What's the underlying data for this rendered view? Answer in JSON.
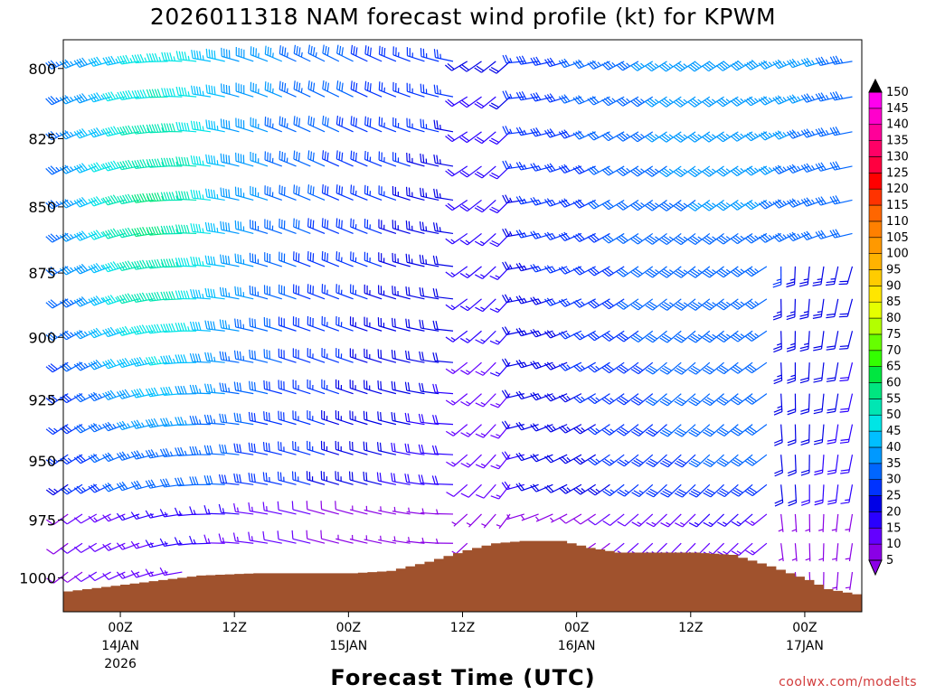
{
  "chart_data": {
    "type": "wind-barb-time-height",
    "title": "2026011318 NAM forecast wind profile (kt) for KPWM",
    "xlabel": "Forecast Time (UTC)",
    "ylabel": "",
    "credit": "coolwx.com/modelts",
    "forecast_hours": [
      0,
      84
    ],
    "pressure_range_hPa": [
      1015,
      790
    ],
    "y_ticks": [
      800,
      825,
      850,
      875,
      900,
      925,
      950,
      975,
      1000
    ],
    "x_ticks": [
      {
        "hour": 6,
        "label": "00Z",
        "date": "14JAN",
        "year": "2026"
      },
      {
        "hour": 18,
        "label": "12Z",
        "date": "",
        "year": ""
      },
      {
        "hour": 30,
        "label": "00Z",
        "date": "15JAN",
        "year": ""
      },
      {
        "hour": 42,
        "label": "12Z",
        "date": "",
        "year": ""
      },
      {
        "hour": 54,
        "label": "00Z",
        "date": "16JAN",
        "year": ""
      },
      {
        "hour": 66,
        "label": "12Z",
        "date": "",
        "year": ""
      },
      {
        "hour": 78,
        "label": "00Z",
        "date": "17JAN",
        "year": ""
      }
    ],
    "surface_pressure_hPa": {
      "hours": [
        0,
        6,
        10,
        14,
        20,
        30,
        34,
        38,
        42,
        45,
        48,
        52,
        55,
        58,
        60,
        66,
        70,
        74,
        78,
        80,
        84
      ],
      "pressure": [
        1006,
        1003,
        1001,
        999,
        998,
        998,
        997,
        993,
        988,
        985,
        984,
        984,
        987,
        989,
        989,
        989,
        990,
        995,
        1001,
        1005,
        1008
      ]
    },
    "colorbar": {
      "units": "kt",
      "levels": [
        5,
        10,
        15,
        20,
        25,
        30,
        35,
        40,
        45,
        50,
        55,
        60,
        65,
        70,
        75,
        80,
        85,
        90,
        95,
        100,
        105,
        110,
        115,
        120,
        125,
        130,
        135,
        140,
        145,
        150
      ],
      "colors": [
        "#8a00e6",
        "#6400ff",
        "#2a00ff",
        "#0000e6",
        "#0033ff",
        "#0066ff",
        "#0099ff",
        "#00bfff",
        "#00e5e5",
        "#00e6b3",
        "#00e680",
        "#00e640",
        "#33ff00",
        "#66ff00",
        "#b3ff00",
        "#e6ff00",
        "#ffe600",
        "#ffcc00",
        "#ffb300",
        "#ff9900",
        "#ff8000",
        "#ff6600",
        "#ff3300",
        "#ff0000",
        "#ff0040",
        "#ff0066",
        "#ff0099",
        "#ff00cc",
        "#ff00ee",
        "#000000"
      ]
    }
  }
}
